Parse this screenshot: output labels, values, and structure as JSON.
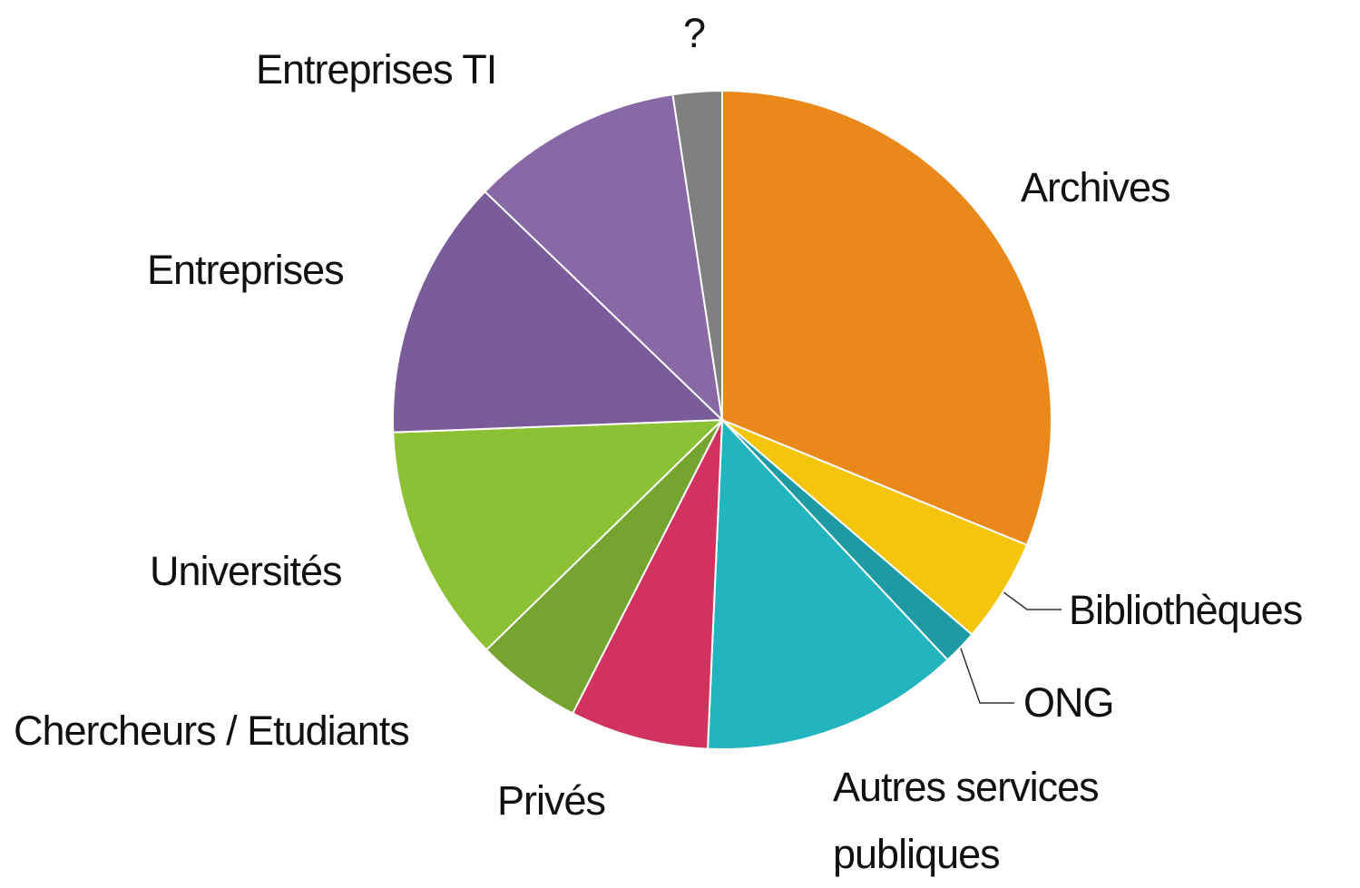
{
  "chart_data": {
    "type": "pie",
    "categories": [
      "Archives",
      "Bibliothèques",
      "ONG",
      "Autres services publiques",
      "Privés",
      "Chercheurs / Etudiants",
      "Universités",
      "Entreprises",
      "Entreprises TI",
      "?"
    ],
    "values": [
      31.2,
      5.1,
      1.7,
      12.7,
      6.8,
      5.2,
      11.7,
      12.8,
      10.4,
      2.4
    ],
    "colors": [
      "#e8891a",
      "#f5c50c",
      "#1e9aa4",
      "#22b5c0",
      "#d1325e",
      "#76a52f",
      "#8cc136",
      "#7a5c9b",
      "#8868a5",
      "#808080"
    ]
  }
}
